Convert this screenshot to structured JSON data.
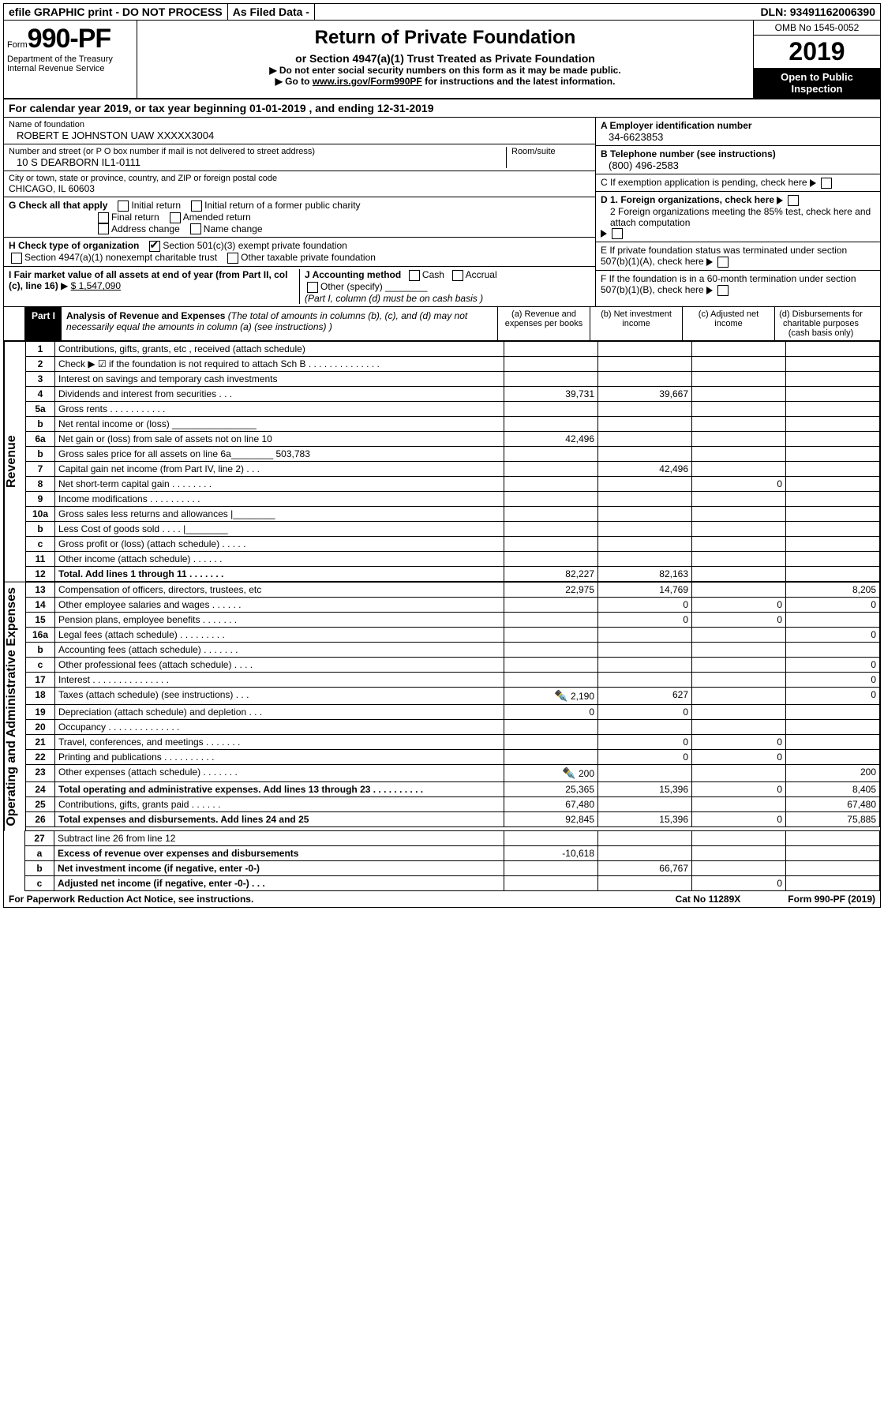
{
  "top": {
    "efile": "efile GRAPHIC print - DO NOT PROCESS",
    "asfiled": "As Filed Data -",
    "dln": "DLN: 93491162006390"
  },
  "header": {
    "form_prefix": "Form",
    "form_no": "990-PF",
    "dept1": "Department of the Treasury",
    "dept2": "Internal Revenue Service",
    "title": "Return of Private Foundation",
    "subtitle": "or Section 4947(a)(1) Trust Treated as Private Foundation",
    "note1": "▶ Do not enter social security numbers on this form as it may be made public.",
    "note2_pre": "▶ Go to ",
    "note2_link": "www.irs.gov/Form990PF",
    "note2_post": " for instructions and the latest information.",
    "omb": "OMB No 1545-0052",
    "year": "2019",
    "inspection": "Open to Public Inspection"
  },
  "calendar": {
    "text_pre": "For calendar year 2019, or tax year beginning ",
    "begin": "01-01-2019",
    "text_mid": " , and ending ",
    "end": "12-31-2019"
  },
  "id": {
    "name_lbl": "Name of foundation",
    "name_val": "ROBERT E JOHNSTON UAW XXXXX3004",
    "addr_lbl": "Number and street (or P O  box number if mail is not delivered to street address)",
    "room_lbl": "Room/suite",
    "addr_val": "10 S DEARBORN IL1-0111",
    "city_lbl": "City or town, state or province, country, and ZIP or foreign postal code",
    "city_val": "CHICAGO, IL  60603",
    "A_lbl": "A Employer identification number",
    "A_val": "34-6623853",
    "B_lbl": "B Telephone number (see instructions)",
    "B_val": "(800) 496-2583",
    "C_lbl": "C If exemption application is pending, check here",
    "D1_lbl": "D 1. Foreign organizations, check here",
    "D2_lbl": "2 Foreign organizations meeting the 85% test, check here and attach computation",
    "E_lbl": "E  If private foundation status was terminated under section 507(b)(1)(A), check here",
    "F_lbl": "F  If the foundation is in a 60-month termination under section 507(b)(1)(B), check here"
  },
  "G": {
    "label": "G Check all that apply",
    "opts": [
      "Initial return",
      "Initial return of a former public charity",
      "Final return",
      "Amended return",
      "Address change",
      "Name change"
    ]
  },
  "H": {
    "label": "H Check type of organization",
    "o1": "Section 501(c)(3) exempt private foundation",
    "o2": "Section 4947(a)(1) nonexempt charitable trust",
    "o3": "Other taxable private foundation"
  },
  "I": {
    "label": "I Fair market value of all assets at end of year (from Part II, col  (c), line 16)",
    "arrow": "▶",
    "val": "$  1,547,090"
  },
  "J": {
    "label": "J Accounting method",
    "cash": "Cash",
    "accrual": "Accrual",
    "other": "Other (specify)",
    "note": "(Part I, column (d) must be on cash basis )"
  },
  "part1": {
    "tag": "Part I",
    "title": "Analysis of Revenue and Expenses",
    "title_note": "(The total of amounts in columns (b), (c), and (d) may not necessarily equal the amounts in column (a) (see instructions) )",
    "col_a": "(a) Revenue and expenses per books",
    "col_b": "(b) Net investment income",
    "col_c": "(c) Adjusted net income",
    "col_d": "(d) Disbursements for charitable purposes (cash basis only)"
  },
  "revenue_label": "Revenue",
  "expense_label": "Operating and Administrative Expenses",
  "rows": [
    {
      "n": "1",
      "d": "Contributions, gifts, grants, etc , received (attach schedule)"
    },
    {
      "n": "2",
      "d": "Check ▶ ☑ if the foundation is not required to attach Sch  B      .   .   .   .   .   .   .   .   .   .   .   .   .   ."
    },
    {
      "n": "3",
      "d": "Interest on savings and temporary cash investments"
    },
    {
      "n": "4",
      "d": "Dividends and interest from securities    .   .   .",
      "a": "39,731",
      "b": "39,667"
    },
    {
      "n": "5a",
      "d": "Gross rents    .   .   .   .   .   .   .   .   .   .   ."
    },
    {
      "n": "b",
      "d": "Net rental income or (loss) ________________"
    },
    {
      "n": "6a",
      "d": "Net gain or (loss) from sale of assets not on line 10",
      "a": "42,496"
    },
    {
      "n": "b",
      "d": "Gross sales price for all assets on line 6a________ 503,783"
    },
    {
      "n": "7",
      "d": "Capital gain net income (from Part IV, line 2)   .   .   .",
      "b": "42,496"
    },
    {
      "n": "8",
      "d": "Net short-term capital gain   .   .   .   .   .   .   .   .",
      "c": "0"
    },
    {
      "n": "9",
      "d": "Income modifications  .   .   .   .   .   .   .   .   .   ."
    },
    {
      "n": "10a",
      "d": "Gross sales less returns and allowances |________"
    },
    {
      "n": "b",
      "d": "Less  Cost of goods sold    .   .   .   .  |________"
    },
    {
      "n": "c",
      "d": "Gross profit or (loss) (attach schedule)   .   .   .   .   ."
    },
    {
      "n": "11",
      "d": "Other income (attach schedule)    .   .   .   .   .   ."
    },
    {
      "n": "12",
      "d": "Total. Add lines 1 through 11   .   .   .   .   .   .   .",
      "a": "82,227",
      "b": "82,163",
      "bold": true
    }
  ],
  "exp_rows": [
    {
      "n": "13",
      "d": "Compensation of officers, directors, trustees, etc",
      "a": "22,975",
      "b": "14,769",
      "dd": "8,205"
    },
    {
      "n": "14",
      "d": "Other employee salaries and wages    .   .   .   .   .   .",
      "b": "0",
      "c": "0",
      "dd": "0"
    },
    {
      "n": "15",
      "d": "Pension plans, employee benefits  .   .   .   .   .   .   .",
      "b": "0",
      "c": "0"
    },
    {
      "n": "16a",
      "d": "Legal fees (attach schedule) .   .   .   .   .   .   .   .   .",
      "dd": "0"
    },
    {
      "n": "b",
      "d": "Accounting fees (attach schedule) .   .   .   .   .   .   ."
    },
    {
      "n": "c",
      "d": "Other professional fees (attach schedule)    .   .   .   .",
      "dd": "0"
    },
    {
      "n": "17",
      "d": "Interest  .   .   .   .   .   .   .   .   .   .   .   .   .   .   .",
      "dd": "0"
    },
    {
      "n": "18",
      "d": "Taxes (attach schedule) (see instructions)      .   .   .",
      "a": "2,190",
      "b": "627",
      "dd": "0",
      "pen": true
    },
    {
      "n": "19",
      "d": "Depreciation (attach schedule) and depletion    .   .   .",
      "a": "0",
      "b": "0"
    },
    {
      "n": "20",
      "d": "Occupancy   .   .   .   .   .   .   .   .   .   .   .   .   .   ."
    },
    {
      "n": "21",
      "d": "Travel, conferences, and meetings .   .   .   .   .   .   .",
      "b": "0",
      "c": "0"
    },
    {
      "n": "22",
      "d": "Printing and publications .   .   .   .   .   .   .   .   .   .",
      "b": "0",
      "c": "0"
    },
    {
      "n": "23",
      "d": "Other expenses (attach schedule) .   .   .   .   .   .   .",
      "a": "200",
      "dd": "200",
      "pen": true
    },
    {
      "n": "24",
      "d": "Total operating and administrative expenses. Add lines 13 through 23   .   .   .   .   .   .   .   .   .   .",
      "a": "25,365",
      "b": "15,396",
      "c": "0",
      "dd": "8,405",
      "bold": true
    },
    {
      "n": "25",
      "d": "Contributions, gifts, grants paid      .   .   .   .   .   .",
      "a": "67,480",
      "dd": "67,480"
    },
    {
      "n": "26",
      "d": "Total expenses and disbursements. Add lines 24 and 25",
      "a": "92,845",
      "b": "15,396",
      "c": "0",
      "dd": "75,885",
      "bold": true
    }
  ],
  "net_rows": [
    {
      "n": "27",
      "d": "Subtract line 26 from line 12"
    },
    {
      "n": "a",
      "d": "Excess of revenue over expenses and disbursements",
      "a": "-10,618",
      "bold": true
    },
    {
      "n": "b",
      "d": "Net investment income (if negative, enter -0-)",
      "b": "66,767",
      "bold": true
    },
    {
      "n": "c",
      "d": "Adjusted net income (if negative, enter -0-)   .   .   .",
      "c": "0",
      "bold": true
    }
  ],
  "footer": {
    "left": "For Paperwork Reduction Act Notice, see instructions.",
    "mid": "Cat  No  11289X",
    "right": "Form 990-PF (2019)"
  },
  "colors": {
    "black": "#000000",
    "white": "#ffffff",
    "gray": "#d0d0d0"
  }
}
